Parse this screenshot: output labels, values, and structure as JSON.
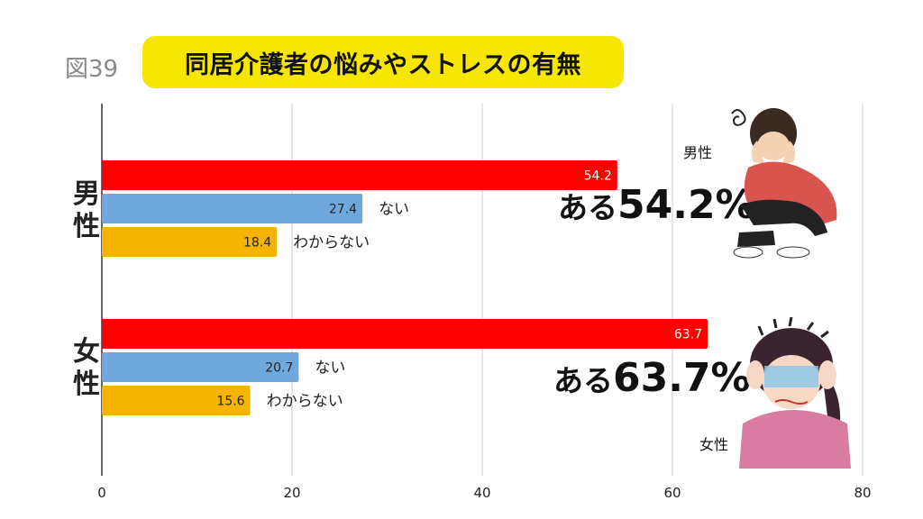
{
  "figure_number": "図39",
  "title": "同居介護者の悩みやストレスの有無",
  "chart_data": {
    "type": "bar",
    "orientation": "horizontal",
    "xlim": [
      0,
      80
    ],
    "xticks": [
      0,
      20,
      40,
      60,
      80
    ],
    "grid": true,
    "groups": [
      {
        "label": "男性",
        "bars": [
          {
            "value": 54.2,
            "label": "",
            "color": "#ff0000"
          },
          {
            "value": 27.4,
            "label": "ない",
            "color": "#6fa8dc"
          },
          {
            "value": 18.4,
            "label": "わからない",
            "color": "#f6b400"
          }
        ]
      },
      {
        "label": "女性",
        "bars": [
          {
            "value": 63.7,
            "label": "",
            "color": "#ff0000"
          },
          {
            "value": 20.7,
            "label": "ない",
            "color": "#6fa8dc"
          },
          {
            "value": 15.6,
            "label": "わからない",
            "color": "#f6b400"
          }
        ]
      }
    ]
  },
  "callouts": {
    "male": {
      "prefix": "ある",
      "value": "54.2%"
    },
    "female": {
      "prefix": "ある",
      "value": "63.7%"
    }
  },
  "illustrations": {
    "male_caption": "男性",
    "female_caption": "女性"
  }
}
